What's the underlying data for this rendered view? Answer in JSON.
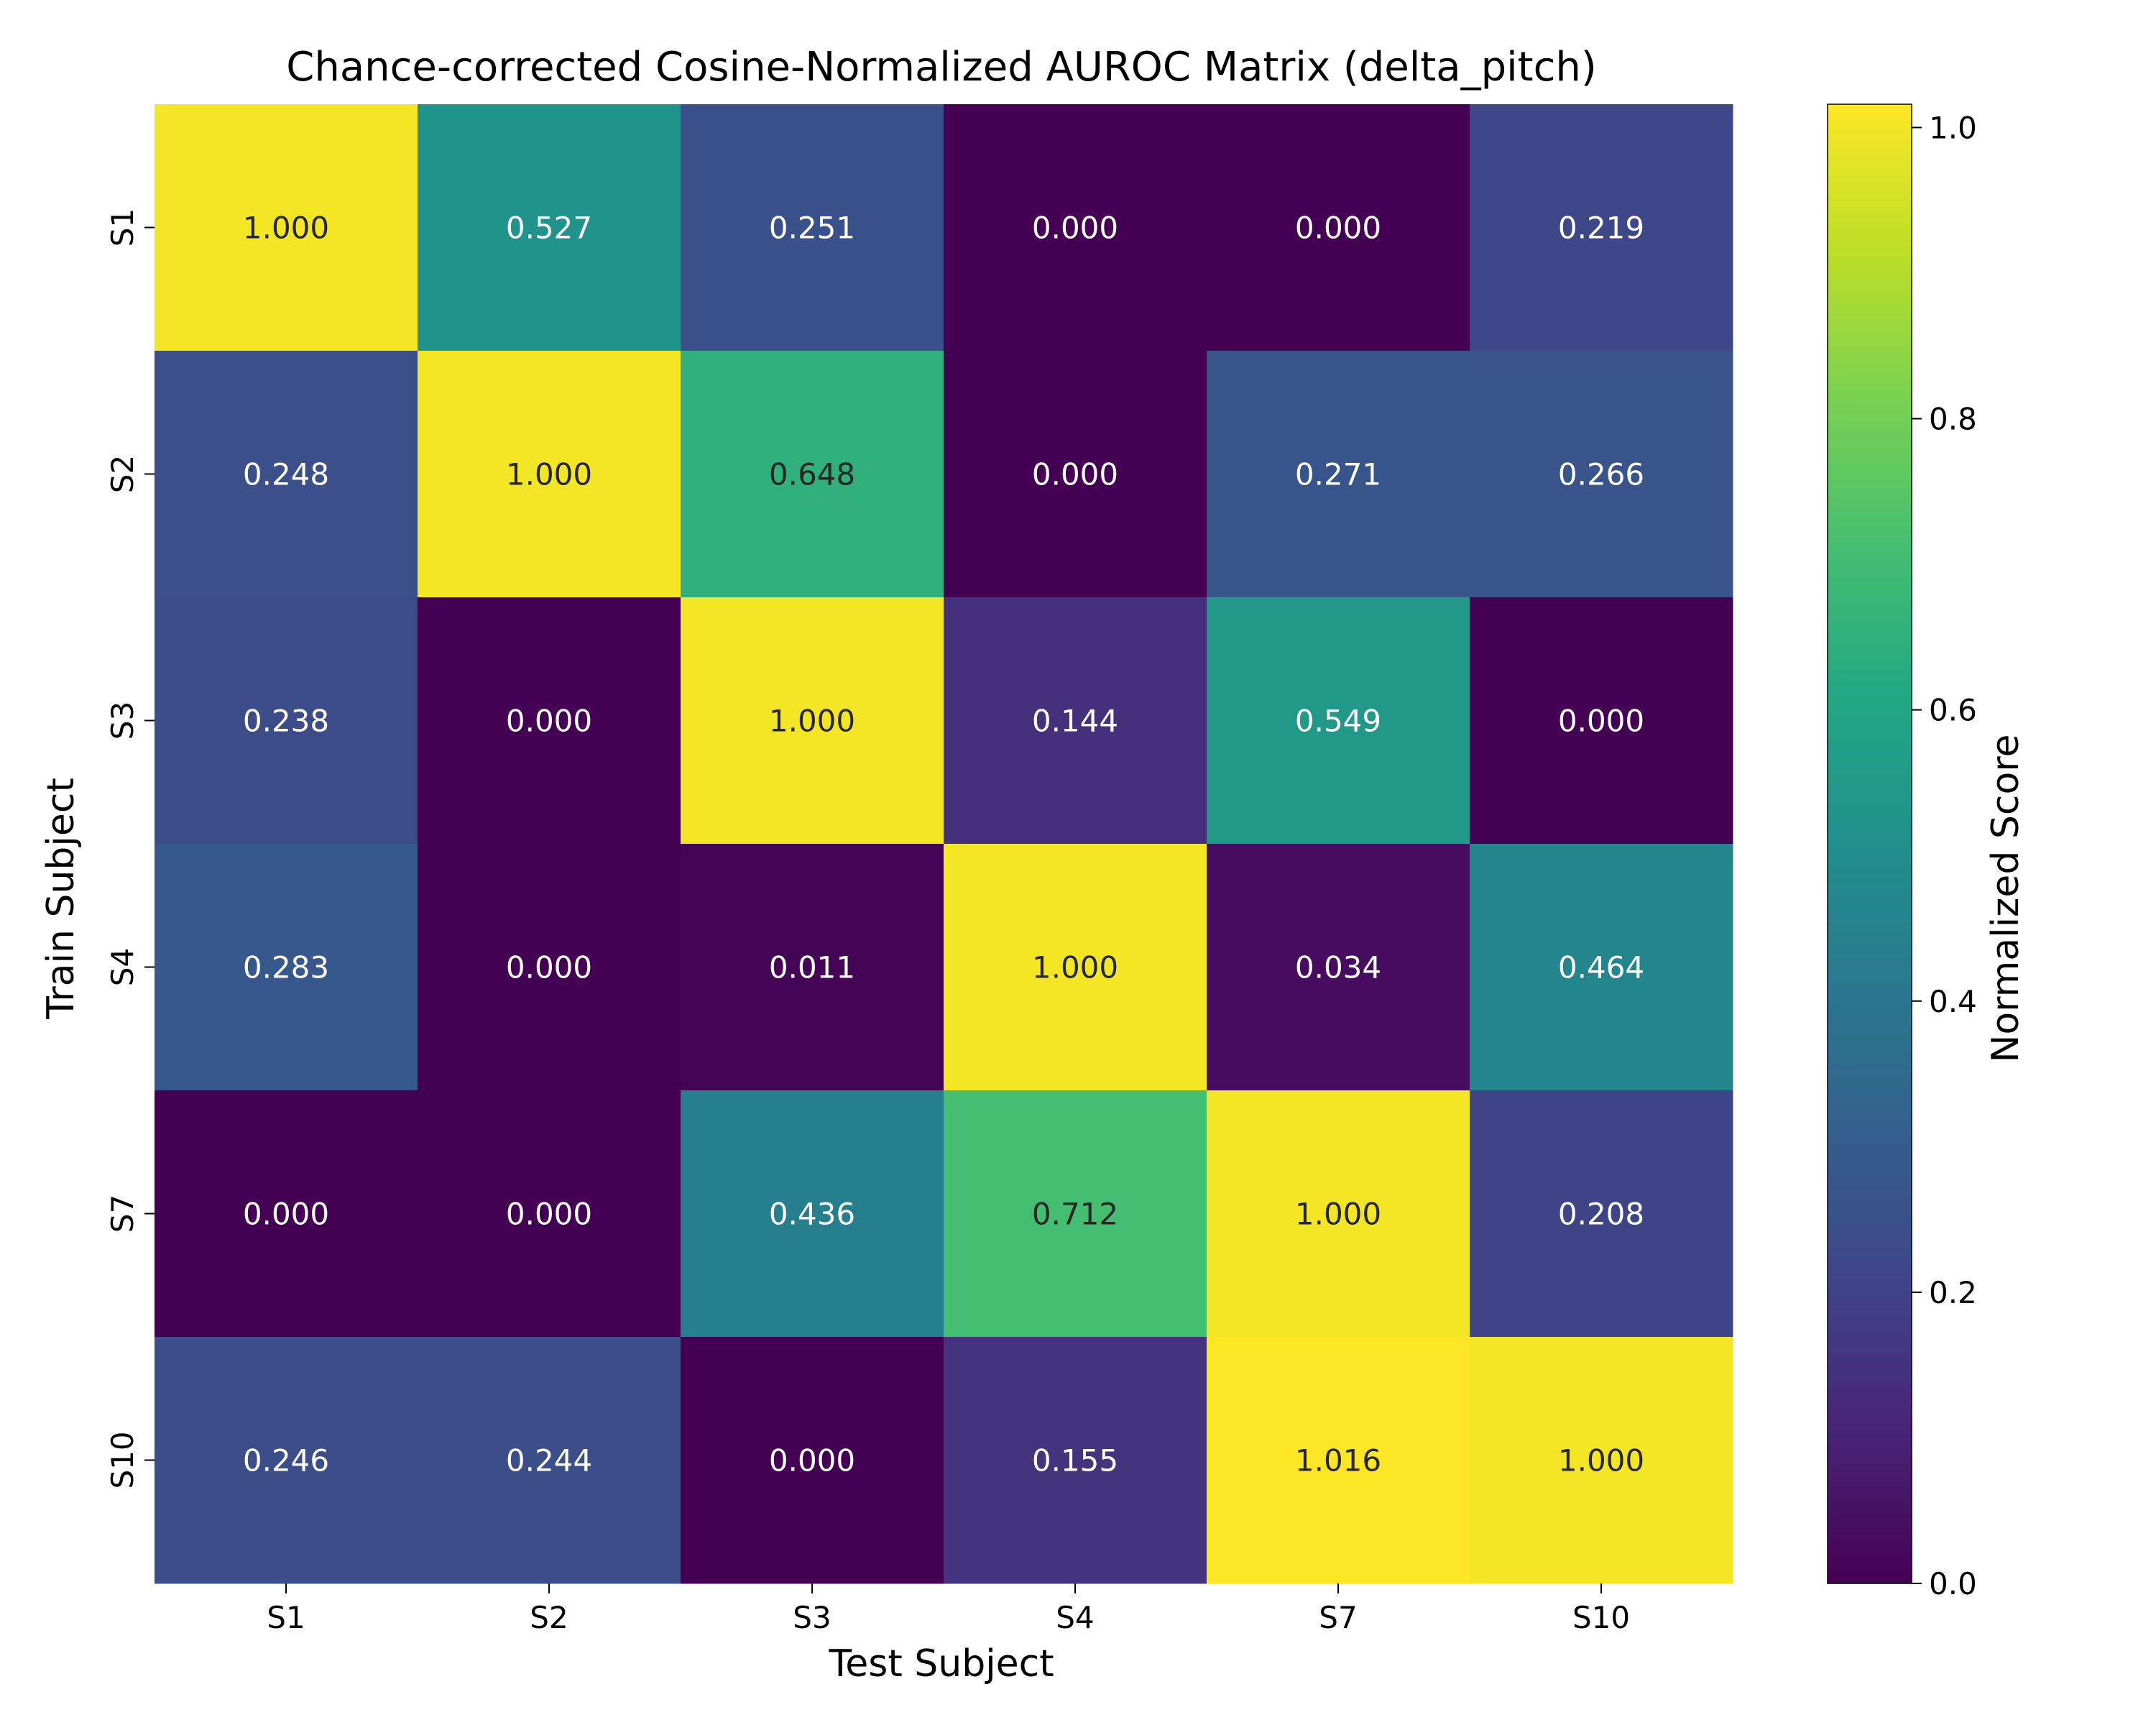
{
  "chart_data": {
    "type": "heatmap",
    "title": "Chance-corrected Cosine-Normalized AUROC Matrix (delta_pitch)",
    "xlabel": "Test Subject",
    "ylabel": "Train Subject",
    "x_categories": [
      "S1",
      "S2",
      "S3",
      "S4",
      "S7",
      "S10"
    ],
    "y_categories": [
      "S1",
      "S2",
      "S3",
      "S4",
      "S7",
      "S10"
    ],
    "values": [
      [
        1.0,
        0.527,
        0.251,
        0.0,
        0.0,
        0.219
      ],
      [
        0.248,
        1.0,
        0.648,
        0.0,
        0.271,
        0.266
      ],
      [
        0.238,
        0.0,
        1.0,
        0.144,
        0.549,
        0.0
      ],
      [
        0.283,
        0.0,
        0.011,
        1.0,
        0.034,
        0.464
      ],
      [
        0.0,
        0.0,
        0.436,
        0.712,
        1.0,
        0.208
      ],
      [
        0.246,
        0.244,
        0.0,
        0.155,
        1.016,
        1.0
      ]
    ],
    "value_format": "3 decimals",
    "colormap": "viridis",
    "colorbar": {
      "label": "Normalized Score",
      "vmin": 0.0,
      "vmax": 1.016,
      "ticks": [
        0.0,
        0.2,
        0.4,
        0.6,
        0.8,
        1.0
      ],
      "tick_labels": [
        "0.0",
        "0.2",
        "0.4",
        "0.6",
        "0.8",
        "1.0"
      ]
    },
    "grid": false
  }
}
